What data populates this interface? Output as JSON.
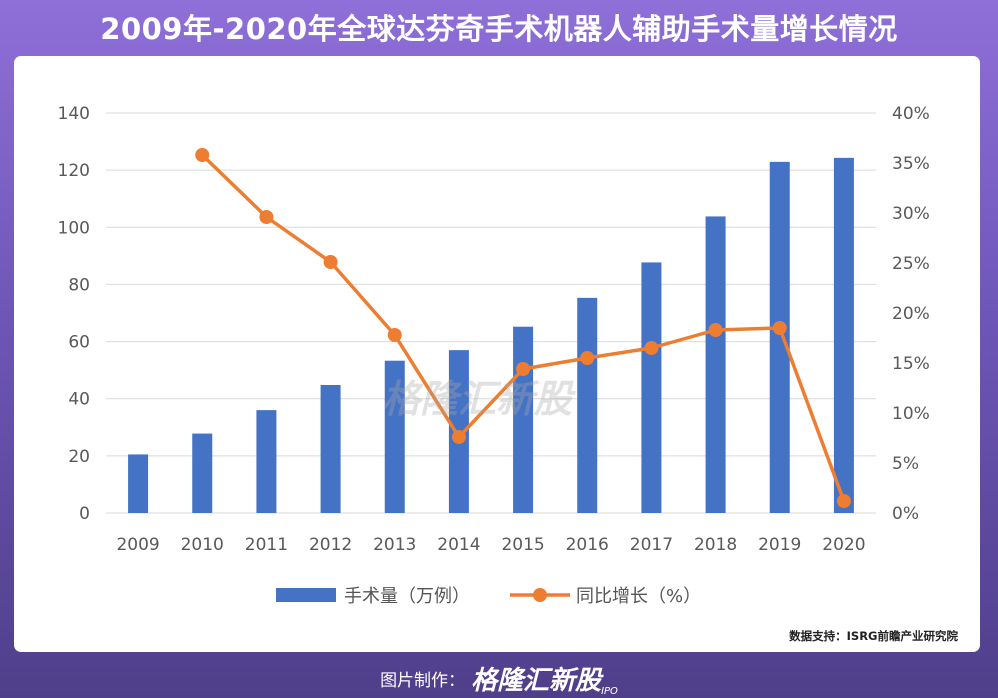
{
  "title": "2009年-2020年全球达芬奇手术机器人辅助手术量增长情况",
  "watermark": "格隆汇新股",
  "source": "数据支持：ISRG前瞻产业研究院",
  "footer": {
    "label": "图片制作：",
    "brand": "格隆汇新股",
    "sub": "IPO"
  },
  "colors": {
    "bar": "#4472c4",
    "line": "#ed7d31",
    "grid": "#d9d9d9"
  },
  "chart_data": {
    "type": "bar",
    "categories": [
      "2009",
      "2010",
      "2011",
      "2012",
      "2013",
      "2014",
      "2015",
      "2016",
      "2017",
      "2018",
      "2019",
      "2020"
    ],
    "series": [
      {
        "name": "手术量（万例）",
        "type": "bar",
        "axis": "left",
        "values": [
          20.5,
          27.8,
          36.0,
          44.8,
          53.3,
          57.0,
          65.2,
          75.3,
          87.7,
          103.8,
          122.9,
          124.3
        ]
      },
      {
        "name": "同比增长（%）",
        "type": "line",
        "axis": "right",
        "values": [
          null,
          35.8,
          29.6,
          25.1,
          17.8,
          7.6,
          14.4,
          15.5,
          16.5,
          18.3,
          18.5,
          1.2
        ]
      }
    ],
    "y_left": {
      "ylim": [
        0,
        140
      ],
      "ticks": [
        "0",
        "20",
        "40",
        "60",
        "80",
        "100",
        "120",
        "140"
      ]
    },
    "y_right": {
      "ylim": [
        0,
        40
      ],
      "ticks": [
        "0%",
        "5%",
        "10%",
        "15%",
        "20%",
        "25%",
        "30%",
        "35%",
        "40%"
      ]
    },
    "grid": true,
    "legend": "bottom"
  }
}
